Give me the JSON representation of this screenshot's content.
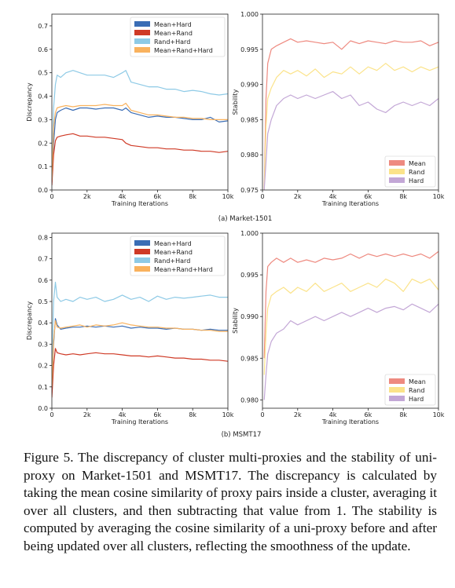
{
  "subfigure_labels": [
    "(a) Market-1501",
    "(b) MSMT17"
  ],
  "caption": "Figure 5. The discrepancy of cluster multi-proxies and the stability of uni-proxy on Market-1501 and MSMT17. The discrepancy is calculated by taking the mean cosine similarity of proxy pairs inside a cluster, averaging it over all clusters, and then subtracting that value from 1. The stability is computed by averaging the cosine similarity of a uni-proxy before and after being updated over all clusters, reflecting the smoothness of the update.",
  "chart_data": [
    {
      "id": "market-discrepancy",
      "type": "line",
      "xlabel": "Training Iterations",
      "ylabel": "Discrepancy",
      "xlim": [
        0,
        10000
      ],
      "ylim": [
        0,
        0.75
      ],
      "xticks": [
        0,
        2000,
        4000,
        6000,
        8000,
        10000
      ],
      "xtick_labels": [
        "0",
        "2k",
        "4k",
        "6k",
        "8k",
        "10k"
      ],
      "yticks": [
        0.0,
        0.1,
        0.2,
        0.3,
        0.4,
        0.5,
        0.6,
        0.7
      ],
      "ytick_labels": [
        "0.0",
        "0.1",
        "0.2",
        "0.3",
        "0.4",
        "0.5",
        "0.6",
        "0.7"
      ],
      "legend_position": "top-right",
      "series": [
        {
          "name": "Mean+Hard",
          "color": "#3a6db5",
          "x": [
            0,
            100,
            200,
            300,
            500,
            800,
            1200,
            1600,
            2000,
            2500,
            3000,
            3500,
            4000,
            4200,
            4500,
            5000,
            5500,
            6000,
            6500,
            7000,
            7500,
            8000,
            8500,
            9000,
            9500,
            10000
          ],
          "y": [
            0.04,
            0.2,
            0.3,
            0.33,
            0.34,
            0.35,
            0.34,
            0.35,
            0.35,
            0.345,
            0.35,
            0.35,
            0.34,
            0.35,
            0.33,
            0.32,
            0.31,
            0.315,
            0.31,
            0.31,
            0.305,
            0.3,
            0.3,
            0.31,
            0.29,
            0.295
          ]
        },
        {
          "name": "Mean+Rand",
          "color": "#cf3a26",
          "x": [
            0,
            100,
            200,
            300,
            500,
            800,
            1200,
            1600,
            2000,
            2500,
            3000,
            3500,
            4000,
            4200,
            4500,
            5000,
            5500,
            6000,
            6500,
            7000,
            7500,
            8000,
            8500,
            9000,
            9500,
            10000
          ],
          "y": [
            0.02,
            0.15,
            0.21,
            0.225,
            0.23,
            0.235,
            0.24,
            0.23,
            0.23,
            0.225,
            0.225,
            0.22,
            0.215,
            0.2,
            0.19,
            0.185,
            0.18,
            0.18,
            0.175,
            0.175,
            0.17,
            0.17,
            0.165,
            0.165,
            0.16,
            0.165
          ]
        },
        {
          "name": "Rand+Hard",
          "color": "#8ecae6",
          "x": [
            0,
            100,
            200,
            300,
            500,
            800,
            1200,
            1600,
            2000,
            2500,
            3000,
            3500,
            4000,
            4200,
            4500,
            5000,
            5500,
            6000,
            6500,
            7000,
            7500,
            8000,
            8500,
            9000,
            9500,
            10000
          ],
          "y": [
            0.05,
            0.35,
            0.45,
            0.49,
            0.48,
            0.5,
            0.51,
            0.5,
            0.49,
            0.49,
            0.49,
            0.48,
            0.5,
            0.51,
            0.46,
            0.45,
            0.44,
            0.44,
            0.43,
            0.43,
            0.42,
            0.425,
            0.42,
            0.41,
            0.405,
            0.41
          ]
        },
        {
          "name": "Mean+Rand+Hard",
          "color": "#f9b25e",
          "x": [
            0,
            100,
            200,
            300,
            500,
            800,
            1200,
            1600,
            2000,
            2500,
            3000,
            3500,
            4000,
            4200,
            4500,
            5000,
            5500,
            6000,
            6500,
            7000,
            7500,
            8000,
            8500,
            9000,
            9500,
            10000
          ],
          "y": [
            0.04,
            0.27,
            0.33,
            0.35,
            0.355,
            0.36,
            0.355,
            0.36,
            0.36,
            0.36,
            0.365,
            0.36,
            0.36,
            0.37,
            0.34,
            0.33,
            0.32,
            0.32,
            0.315,
            0.31,
            0.31,
            0.305,
            0.305,
            0.3,
            0.3,
            0.3
          ]
        }
      ]
    },
    {
      "id": "market-stability",
      "type": "line",
      "xlabel": "Training Iterations",
      "ylabel": "Stability",
      "xlim": [
        0,
        10000
      ],
      "ylim": [
        0.975,
        1.0
      ],
      "xticks": [
        0,
        2000,
        4000,
        6000,
        8000,
        10000
      ],
      "xtick_labels": [
        "0",
        "2k",
        "4k",
        "6k",
        "8k",
        "10k"
      ],
      "yticks": [
        0.975,
        0.98,
        0.985,
        0.99,
        0.995,
        1.0
      ],
      "ytick_labels": [
        "0.975",
        "0.980",
        "0.985",
        "0.990",
        "0.995",
        "1.000"
      ],
      "legend_position": "bottom-right",
      "series": [
        {
          "name": "Mean",
          "color": "#ee8a80",
          "x": [
            100,
            200,
            300,
            500,
            800,
            1200,
            1600,
            2000,
            2500,
            3000,
            3500,
            4000,
            4500,
            5000,
            5500,
            6000,
            6500,
            7000,
            7500,
            8000,
            8500,
            9000,
            9500,
            10000
          ],
          "y": [
            0.975,
            0.988,
            0.993,
            0.995,
            0.9955,
            0.996,
            0.9965,
            0.996,
            0.9962,
            0.996,
            0.9958,
            0.996,
            0.995,
            0.9962,
            0.9958,
            0.9962,
            0.996,
            0.9958,
            0.9962,
            0.996,
            0.996,
            0.9962,
            0.9955,
            0.996
          ]
        },
        {
          "name": "Rand",
          "color": "#fbe38a",
          "x": [
            100,
            200,
            300,
            500,
            800,
            1200,
            1600,
            2000,
            2500,
            3000,
            3500,
            4000,
            4500,
            5000,
            5500,
            6000,
            6500,
            7000,
            7500,
            8000,
            8500,
            9000,
            9500,
            10000
          ],
          "y": [
            0.975,
            0.984,
            0.988,
            0.9895,
            0.991,
            0.992,
            0.9915,
            0.992,
            0.9912,
            0.9922,
            0.991,
            0.9918,
            0.9915,
            0.9925,
            0.9915,
            0.9925,
            0.992,
            0.993,
            0.992,
            0.9925,
            0.9918,
            0.9925,
            0.992,
            0.9925
          ]
        },
        {
          "name": "Hard",
          "color": "#c3a7d6",
          "x": [
            100,
            200,
            300,
            500,
            800,
            1200,
            1600,
            2000,
            2500,
            3000,
            3500,
            4000,
            4500,
            5000,
            5500,
            6000,
            6500,
            7000,
            7500,
            8000,
            8500,
            9000,
            9500,
            10000
          ],
          "y": [
            0.975,
            0.979,
            0.983,
            0.985,
            0.987,
            0.988,
            0.9885,
            0.988,
            0.9885,
            0.988,
            0.9885,
            0.989,
            0.988,
            0.9885,
            0.987,
            0.9875,
            0.9865,
            0.986,
            0.987,
            0.9875,
            0.987,
            0.9875,
            0.987,
            0.988
          ]
        }
      ]
    },
    {
      "id": "msmt-discrepancy",
      "type": "line",
      "xlabel": "Training Iterations",
      "ylabel": "Discrepancy",
      "xlim": [
        0,
        10000
      ],
      "ylim": [
        0,
        0.82
      ],
      "xticks": [
        0,
        2000,
        4000,
        6000,
        8000,
        10000
      ],
      "xtick_labels": [
        "0",
        "2k",
        "4k",
        "6k",
        "8k",
        "10k"
      ],
      "yticks": [
        0.0,
        0.1,
        0.2,
        0.3,
        0.4,
        0.5,
        0.6,
        0.7,
        0.8
      ],
      "ytick_labels": [
        "0.0",
        "0.1",
        "0.2",
        "0.3",
        "0.4",
        "0.5",
        "0.6",
        "0.7",
        "0.8"
      ],
      "legend_position": "top-right",
      "series": [
        {
          "name": "Mean+Hard",
          "color": "#3a6db5",
          "x": [
            0,
            100,
            200,
            300,
            500,
            800,
            1200,
            1600,
            2000,
            2500,
            3000,
            3500,
            4000,
            4500,
            5000,
            5500,
            6000,
            6500,
            7000,
            7500,
            8000,
            8500,
            9000,
            9500,
            10000
          ],
          "y": [
            0.1,
            0.3,
            0.42,
            0.39,
            0.37,
            0.375,
            0.38,
            0.38,
            0.385,
            0.38,
            0.385,
            0.38,
            0.385,
            0.375,
            0.38,
            0.375,
            0.375,
            0.37,
            0.375,
            0.37,
            0.37,
            0.365,
            0.37,
            0.365,
            0.365
          ]
        },
        {
          "name": "Mean+Rand",
          "color": "#cf3a26",
          "x": [
            0,
            100,
            200,
            300,
            500,
            800,
            1200,
            1600,
            2000,
            2500,
            3000,
            3500,
            4000,
            4500,
            5000,
            5500,
            6000,
            6500,
            7000,
            7500,
            8000,
            8500,
            9000,
            9500,
            10000
          ],
          "y": [
            0.05,
            0.2,
            0.28,
            0.26,
            0.255,
            0.25,
            0.255,
            0.25,
            0.255,
            0.26,
            0.255,
            0.255,
            0.25,
            0.245,
            0.245,
            0.24,
            0.245,
            0.24,
            0.235,
            0.235,
            0.23,
            0.23,
            0.225,
            0.225,
            0.22
          ]
        },
        {
          "name": "Rand+Hard",
          "color": "#8ecae6",
          "x": [
            0,
            100,
            200,
            300,
            500,
            800,
            1200,
            1600,
            2000,
            2500,
            3000,
            3500,
            4000,
            4500,
            5000,
            5500,
            6000,
            6500,
            7000,
            7500,
            8000,
            8500,
            9000,
            9500,
            10000
          ],
          "y": [
            0.2,
            0.5,
            0.59,
            0.52,
            0.5,
            0.51,
            0.5,
            0.52,
            0.51,
            0.52,
            0.5,
            0.51,
            0.53,
            0.51,
            0.52,
            0.5,
            0.525,
            0.51,
            0.52,
            0.515,
            0.52,
            0.525,
            0.53,
            0.52,
            0.52
          ]
        },
        {
          "name": "Mean+Rand+Hard",
          "color": "#f9b25e",
          "x": [
            0,
            100,
            200,
            300,
            500,
            800,
            1200,
            1600,
            2000,
            2500,
            3000,
            3500,
            4000,
            4500,
            5000,
            5500,
            6000,
            6500,
            7000,
            7500,
            8000,
            8500,
            9000,
            9500,
            10000
          ],
          "y": [
            0.1,
            0.32,
            0.41,
            0.38,
            0.375,
            0.38,
            0.385,
            0.39,
            0.38,
            0.39,
            0.385,
            0.39,
            0.4,
            0.39,
            0.385,
            0.38,
            0.38,
            0.375,
            0.375,
            0.37,
            0.37,
            0.365,
            0.365,
            0.36,
            0.36
          ]
        }
      ]
    },
    {
      "id": "msmt-stability",
      "type": "line",
      "xlabel": "Training Iterations",
      "ylabel": "Stability",
      "xlim": [
        0,
        10000
      ],
      "ylim": [
        0.979,
        1.0
      ],
      "xticks": [
        0,
        2000,
        4000,
        6000,
        8000,
        10000
      ],
      "xtick_labels": [
        "0",
        "2k",
        "4k",
        "6k",
        "8k",
        "10k"
      ],
      "yticks": [
        0.98,
        0.985,
        0.99,
        0.995,
        1.0
      ],
      "ytick_labels": [
        "0.980",
        "0.985",
        "0.990",
        "0.995",
        "1.000"
      ],
      "legend_position": "bottom-right",
      "series": [
        {
          "name": "Mean",
          "color": "#ee8a80",
          "x": [
            100,
            200,
            300,
            500,
            800,
            1200,
            1600,
            2000,
            2500,
            3000,
            3500,
            4000,
            4500,
            5000,
            5500,
            6000,
            6500,
            7000,
            7500,
            8000,
            8500,
            9000,
            9500,
            10000
          ],
          "y": [
            0.985,
            0.993,
            0.996,
            0.9965,
            0.997,
            0.9965,
            0.997,
            0.9965,
            0.9968,
            0.9965,
            0.997,
            0.9968,
            0.997,
            0.9975,
            0.997,
            0.9975,
            0.9972,
            0.9975,
            0.9972,
            0.9975,
            0.9972,
            0.9975,
            0.997,
            0.9978
          ]
        },
        {
          "name": "Rand",
          "color": "#fbe38a",
          "x": [
            100,
            200,
            300,
            500,
            800,
            1200,
            1600,
            2000,
            2500,
            3000,
            3500,
            4000,
            4500,
            5000,
            5500,
            6000,
            6500,
            7000,
            7500,
            8000,
            8500,
            9000,
            9500,
            10000
          ],
          "y": [
            0.983,
            0.988,
            0.991,
            0.9925,
            0.993,
            0.9935,
            0.9928,
            0.9935,
            0.993,
            0.994,
            0.993,
            0.9935,
            0.994,
            0.993,
            0.9935,
            0.994,
            0.9935,
            0.9945,
            0.994,
            0.993,
            0.9945,
            0.994,
            0.9945,
            0.9932
          ]
        },
        {
          "name": "Hard",
          "color": "#c3a7d6",
          "x": [
            100,
            200,
            300,
            500,
            800,
            1200,
            1600,
            2000,
            2500,
            3000,
            3500,
            4000,
            4500,
            5000,
            5500,
            6000,
            6500,
            7000,
            7500,
            8000,
            8500,
            9000,
            9500,
            10000
          ],
          "y": [
            0.98,
            0.983,
            0.9855,
            0.987,
            0.988,
            0.9885,
            0.9895,
            0.989,
            0.9895,
            0.99,
            0.9895,
            0.99,
            0.9905,
            0.99,
            0.9905,
            0.991,
            0.9905,
            0.991,
            0.9912,
            0.9908,
            0.9915,
            0.991,
            0.9905,
            0.9915
          ]
        }
      ]
    }
  ]
}
